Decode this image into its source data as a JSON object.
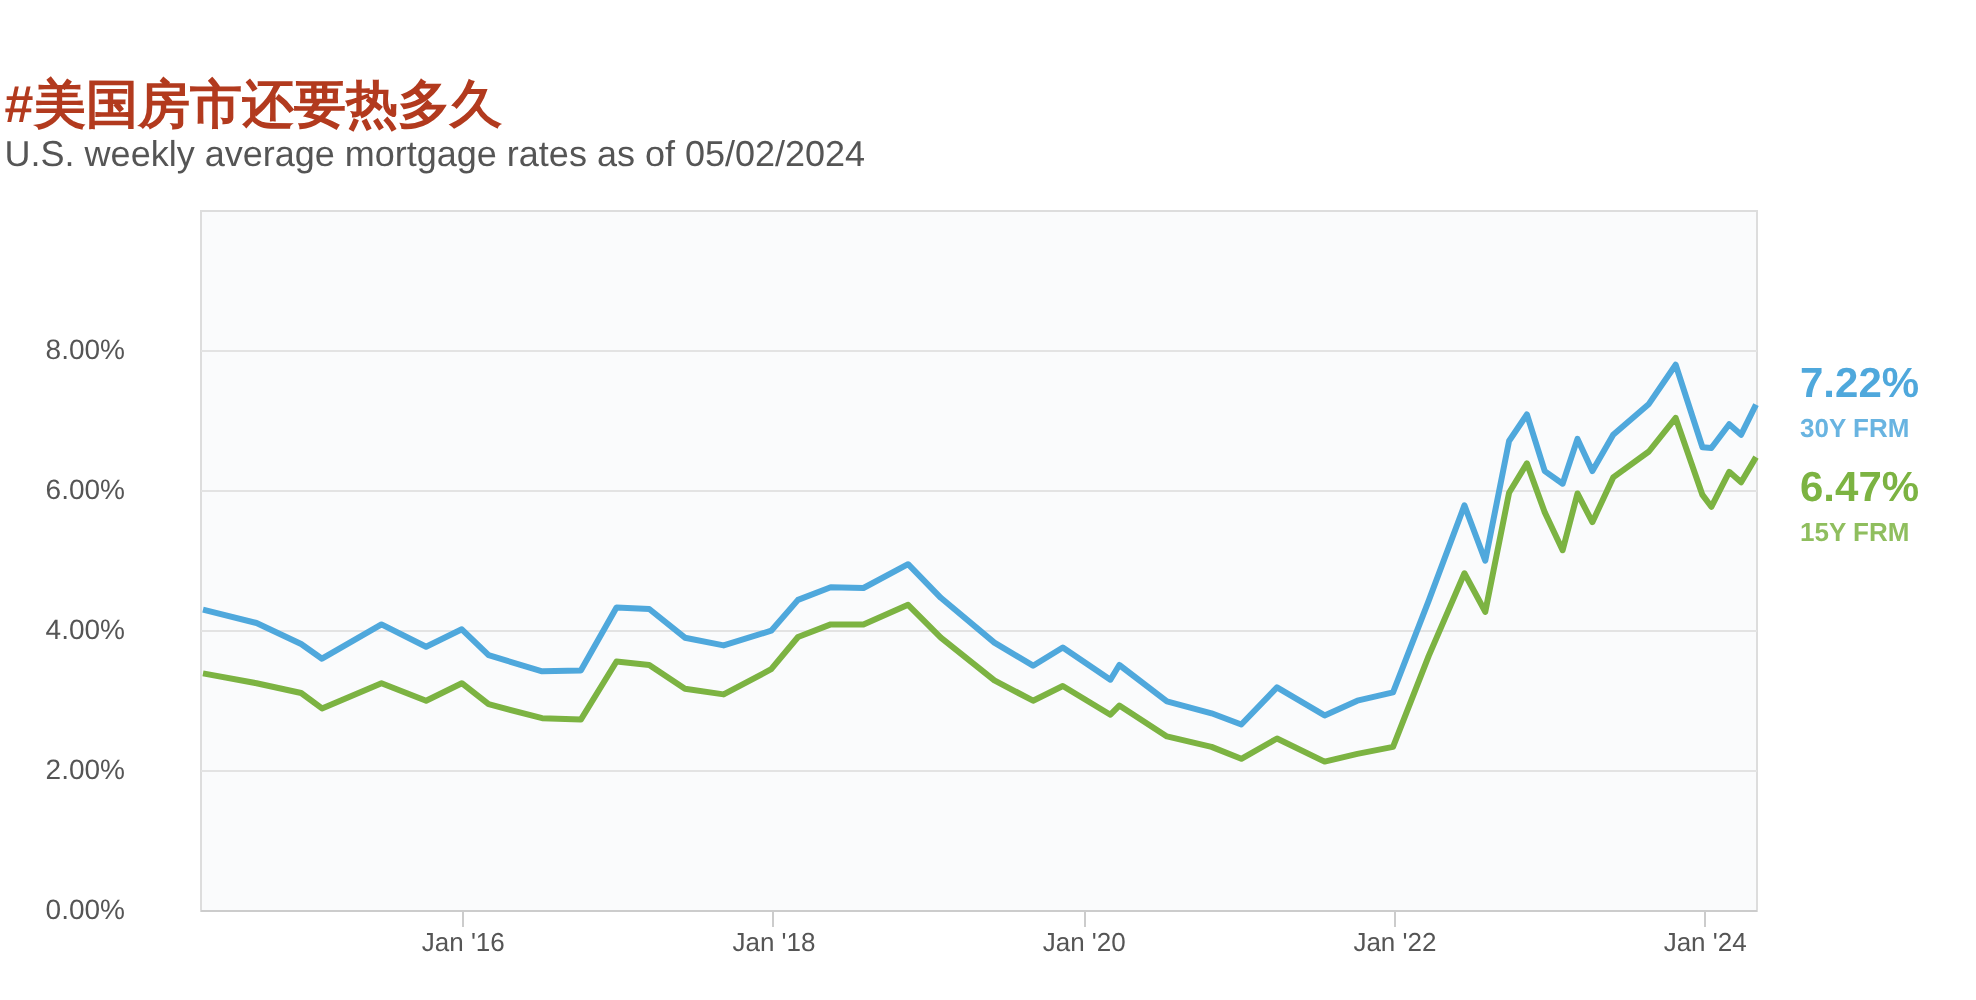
{
  "chart_data": {
    "type": "line",
    "title": "#美国房市还要热多久",
    "subtitle": "U.S. weekly average mortgage rates as of 05/02/2024",
    "x": [
      "2014-05-01",
      "2014-09-04",
      "2014-12-18",
      "2015-02-05",
      "2015-06-25",
      "2015-10-08",
      "2015-12-31",
      "2016-03-03",
      "2016-07-07",
      "2016-10-06",
      "2016-12-29",
      "2017-03-16",
      "2017-06-08",
      "2017-09-07",
      "2017-12-28",
      "2018-03-01",
      "2018-05-17",
      "2018-08-02",
      "2018-11-15",
      "2019-01-31",
      "2019-06-06",
      "2019-09-05",
      "2019-11-14",
      "2020-03-05",
      "2020-03-26",
      "2020-07-16",
      "2020-10-29",
      "2021-01-07",
      "2021-04-01",
      "2021-07-22",
      "2021-10-07",
      "2021-12-30",
      "2022-03-24",
      "2022-06-16",
      "2022-08-04",
      "2022-09-29",
      "2022-11-10",
      "2022-12-22",
      "2023-02-02",
      "2023-03-09",
      "2023-04-13",
      "2023-06-01",
      "2023-08-24",
      "2023-10-26",
      "2023-12-28",
      "2024-01-18",
      "2024-02-29",
      "2024-03-28",
      "2024-05-02"
    ],
    "series": [
      {
        "name": "30Y FRM",
        "color": "#4fa8dc",
        "values": [
          4.29,
          4.1,
          3.8,
          3.59,
          4.08,
          3.76,
          4.01,
          3.64,
          3.41,
          3.42,
          4.32,
          4.3,
          3.89,
          3.78,
          3.99,
          4.43,
          4.61,
          4.6,
          4.94,
          4.46,
          3.82,
          3.49,
          3.75,
          3.29,
          3.5,
          2.98,
          2.81,
          2.65,
          3.18,
          2.78,
          2.99,
          3.11,
          4.42,
          5.78,
          4.99,
          6.7,
          7.08,
          6.27,
          6.09,
          6.73,
          6.27,
          6.79,
          7.23,
          7.79,
          6.61,
          6.6,
          6.94,
          6.79,
          7.22
        ],
        "value_labels": [
          null,
          null,
          null,
          null,
          null,
          null,
          null,
          null,
          null,
          null,
          null,
          null,
          null,
          null,
          null,
          null,
          null,
          null,
          null,
          null,
          null,
          null,
          null,
          null,
          null,
          null,
          null,
          null,
          null,
          null,
          null,
          null,
          null,
          null,
          null,
          null,
          null,
          null,
          null,
          null,
          null,
          null,
          null,
          null,
          null,
          null,
          null,
          null,
          "7.22%"
        ]
      },
      {
        "name": "15Y FRM",
        "color": "#7cb342",
        "values": [
          3.38,
          3.24,
          3.1,
          2.88,
          3.24,
          2.99,
          3.24,
          2.94,
          2.74,
          2.72,
          3.55,
          3.5,
          3.16,
          3.08,
          3.44,
          3.9,
          4.08,
          4.08,
          4.36,
          3.89,
          3.28,
          2.99,
          3.2,
          2.79,
          2.92,
          2.48,
          2.33,
          2.16,
          2.45,
          2.12,
          2.23,
          2.33,
          3.63,
          4.81,
          4.26,
          5.96,
          6.38,
          5.68,
          5.14,
          5.95,
          5.54,
          6.18,
          6.55,
          7.03,
          5.93,
          5.76,
          6.26,
          6.11,
          6.47
        ],
        "value_labels": [
          null,
          null,
          null,
          null,
          null,
          null,
          null,
          null,
          null,
          null,
          null,
          null,
          null,
          null,
          null,
          null,
          null,
          null,
          null,
          null,
          null,
          null,
          null,
          null,
          null,
          null,
          null,
          null,
          null,
          null,
          null,
          null,
          null,
          null,
          null,
          null,
          null,
          null,
          null,
          null,
          null,
          null,
          null,
          null,
          null,
          null,
          null,
          null,
          "6.47%"
        ]
      }
    ],
    "xlim": [
      "2014-04-24",
      "2024-05-02"
    ],
    "xticks": [
      {
        "value": "2016-01-01",
        "label": "Jan '16"
      },
      {
        "value": "2018-01-01",
        "label": "Jan '18"
      },
      {
        "value": "2020-01-01",
        "label": "Jan '20"
      },
      {
        "value": "2022-01-01",
        "label": "Jan '22"
      },
      {
        "value": "2024-01-01",
        "label": "Jan '24"
      }
    ],
    "ylim": [
      0,
      10
    ],
    "yticks": [
      {
        "value": 0,
        "label": "0.00%"
      },
      {
        "value": 2,
        "label": "2.00%"
      },
      {
        "value": 4,
        "label": "4.00%"
      },
      {
        "value": 6,
        "label": "6.00%"
      },
      {
        "value": 8,
        "label": "8.00%"
      }
    ],
    "grid": "y",
    "marker": "none",
    "line_style": "solid",
    "legend": false
  }
}
